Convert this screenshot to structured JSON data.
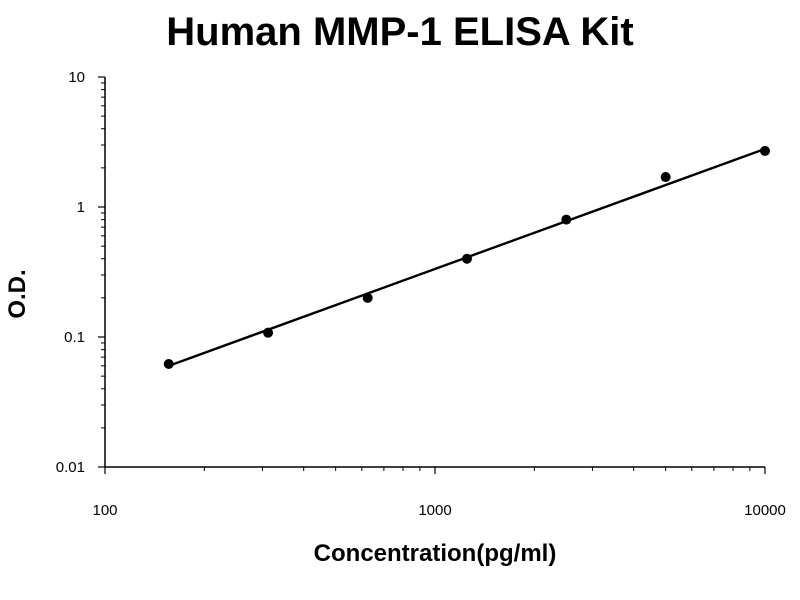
{
  "chart_data": {
    "type": "scatter",
    "title": "Human MMP-1 ELISA Kit",
    "xlabel": "Concentration(pg/ml)",
    "ylabel": "O.D.",
    "x_scale": "log",
    "y_scale": "log",
    "xlim": [
      100,
      10000
    ],
    "ylim": [
      0.01,
      10
    ],
    "x_ticks": [
      "100",
      "1000",
      "10000"
    ],
    "y_ticks": [
      "0.01",
      "0.1",
      "1",
      "10"
    ],
    "grid": false,
    "legend": "none",
    "series": [
      {
        "x": [
          156,
          312,
          625,
          1250,
          2500,
          5000,
          10000
        ],
        "y": [
          0.062,
          0.108,
          0.2,
          0.4,
          0.8,
          1.7,
          2.7
        ]
      }
    ],
    "trendline": {
      "type": "power",
      "x_range": [
        156,
        10000
      ],
      "y_range": [
        0.06,
        2.8
      ]
    },
    "colors": {
      "points": "#000000",
      "line": "#000000",
      "axes": "#000000"
    }
  }
}
